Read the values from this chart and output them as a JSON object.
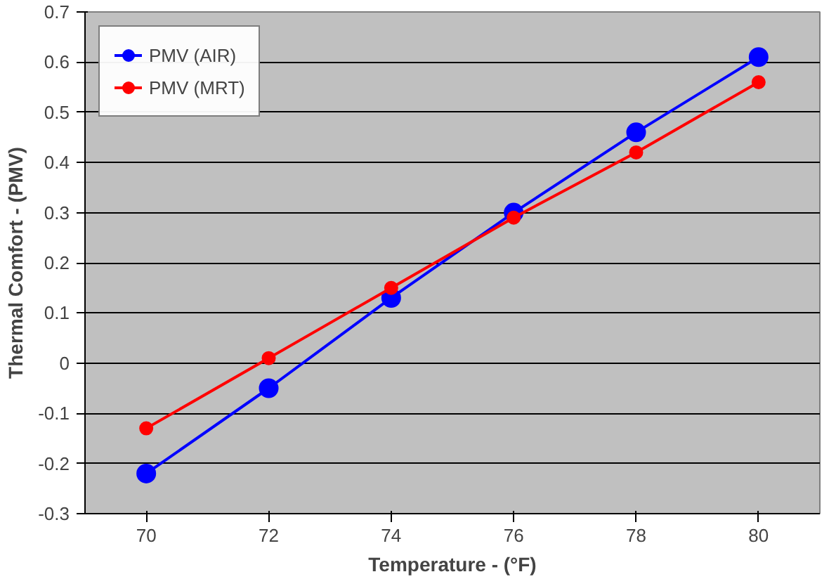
{
  "chart_data": {
    "type": "line",
    "xlabel": "Temperature - (°F)",
    "ylabel": "Thermal Comfort - (PMV)",
    "categories": [
      "70",
      "72",
      "74",
      "76",
      "78",
      "80"
    ],
    "series": [
      {
        "name": "PMV (AIR)",
        "color": "#0000ff",
        "values": [
          -0.22,
          -0.05,
          0.13,
          0.3,
          0.46,
          0.61
        ]
      },
      {
        "name": "PMV (MRT)",
        "color": "#ff0000",
        "values": [
          -0.13,
          0.01,
          0.15,
          0.29,
          0.42,
          0.56
        ]
      }
    ],
    "ylim": [
      -0.3,
      0.7
    ],
    "yticks": [
      -0.3,
      -0.2,
      -0.1,
      0,
      0.1,
      0.2,
      0.3,
      0.4,
      0.5,
      0.6,
      0.7
    ],
    "grid": "y",
    "legend": "top left",
    "marker": "circle",
    "line_style": "solid"
  }
}
